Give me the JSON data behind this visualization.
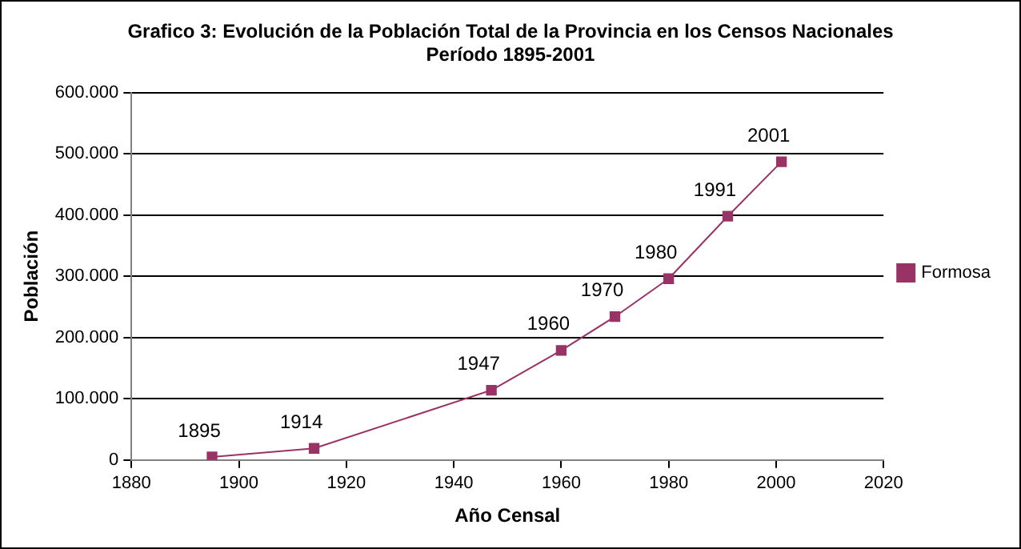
{
  "chart_data": {
    "type": "line",
    "title": "Grafico 3: Evolución de la Población Total de la Provincia en los Censos Nacionales",
    "subtitle": "Período 1895-2001",
    "xlabel": "Año Censal",
    "ylabel": "Población",
    "x": [
      1895,
      1914,
      1947,
      1960,
      1970,
      1980,
      1991,
      2001
    ],
    "series": [
      {
        "name": "Formosa",
        "color": "#993366",
        "values": [
          5000,
          19000,
          114000,
          179000,
          234000,
          296000,
          398000,
          487000
        ]
      }
    ],
    "xlim": [
      1880,
      2020
    ],
    "xticks": [
      1880,
      1900,
      1920,
      1940,
      1960,
      1980,
      2000,
      2020
    ],
    "ylim": [
      0,
      600000
    ],
    "yticks": [
      {
        "value": 0,
        "label": "0"
      },
      {
        "value": 100000,
        "label": "100.000"
      },
      {
        "value": 200000,
        "label": "200.000"
      },
      {
        "value": 300000,
        "label": "300.000"
      },
      {
        "value": 400000,
        "label": "400.000"
      },
      {
        "value": 500000,
        "label": "500.000"
      },
      {
        "value": 600000,
        "label": "600.000"
      }
    ],
    "grid": "y",
    "legend": "right",
    "marker": "square",
    "line_style": "solid",
    "annotations": [
      {
        "text": "1895",
        "x": 1895,
        "y": 5000
      },
      {
        "text": "1914",
        "x": 1914,
        "y": 19000
      },
      {
        "text": "1947",
        "x": 1947,
        "y": 114000
      },
      {
        "text": "1960",
        "x": 1960,
        "y": 179000
      },
      {
        "text": "1970",
        "x": 1970,
        "y": 234000
      },
      {
        "text": "1980",
        "x": 1980,
        "y": 296000
      },
      {
        "text": "1991",
        "x": 1991,
        "y": 398000
      },
      {
        "text": "2001",
        "x": 2001,
        "y": 487000
      }
    ]
  }
}
